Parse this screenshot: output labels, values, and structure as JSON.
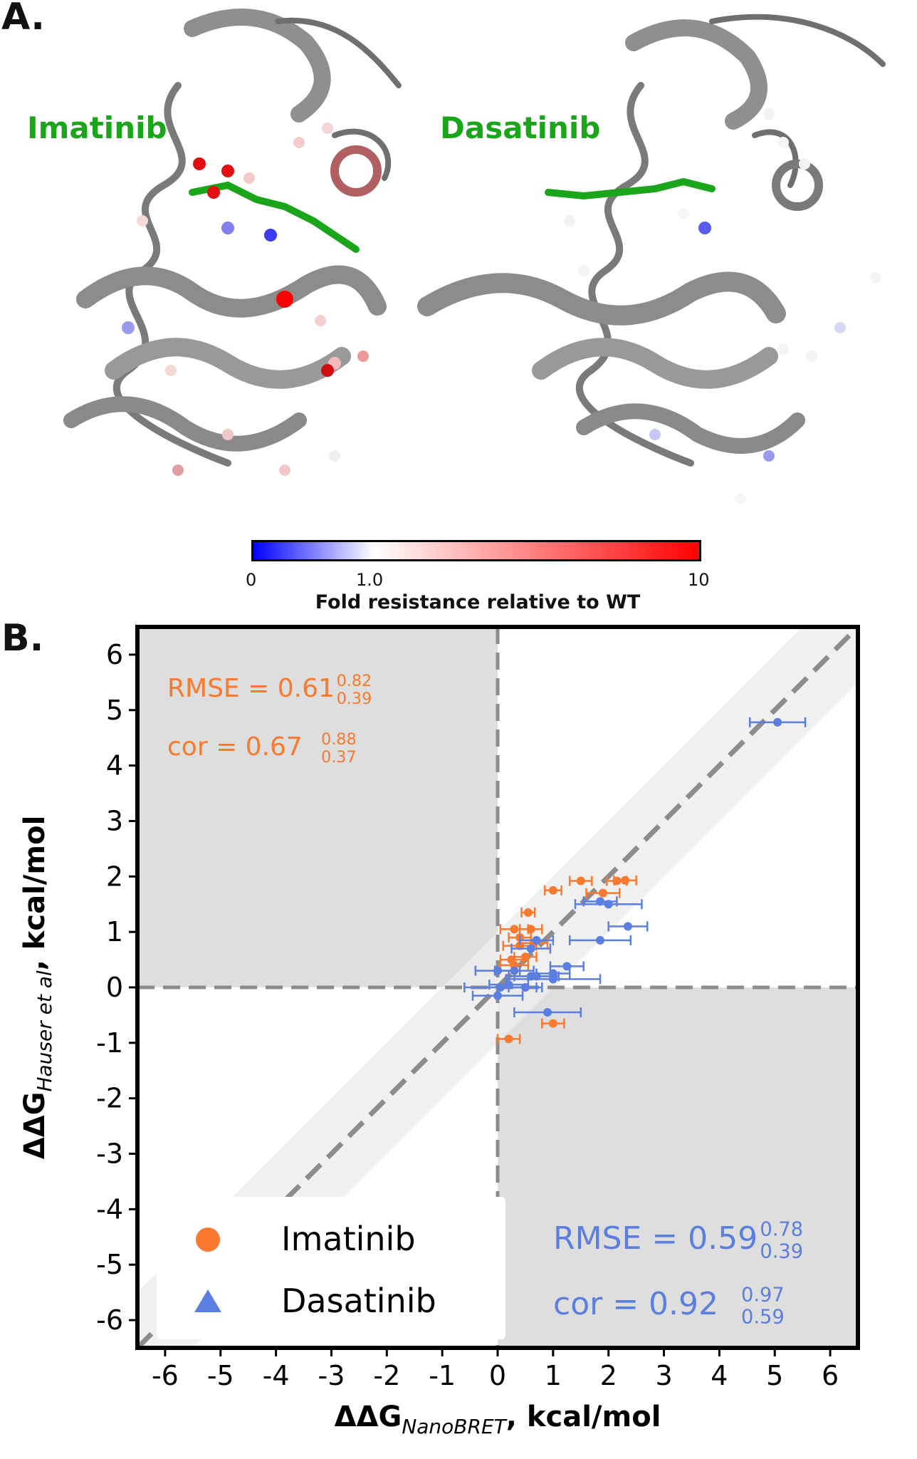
{
  "panels": {
    "a_label": "A.",
    "b_label": "B."
  },
  "structures": {
    "left_ligand": "Imatinib",
    "right_ligand": "Dasatinib"
  },
  "colorbar": {
    "ticks": [
      "0",
      "1.0",
      "10"
    ],
    "label": "Fold resistance relative to WT",
    "colors": [
      "#0000ff",
      "#ffffff",
      "#ff0000"
    ]
  },
  "chart_data": {
    "type": "scatter",
    "xlabel_main": "ΔΔG",
    "xlabel_sub": "NanoBRET",
    "xlabel_tail": ", kcal/mol",
    "ylabel_main": "ΔΔG",
    "ylabel_sub": "Hauser et al",
    "ylabel_tail": ", kcal/mol",
    "xlim": [
      -6.5,
      6.5
    ],
    "ylim": [
      -6.5,
      6.5
    ],
    "ticks": [
      -6,
      -5,
      -4,
      -3,
      -2,
      -1,
      0,
      1,
      2,
      3,
      4,
      5,
      6
    ],
    "quadrant_shading": "upper-left and lower-right quadrants shaded gray",
    "diagonal": "dashed y = x line with light ±1 band",
    "legend_position": "lower-left",
    "series": [
      {
        "name": "Imatinib",
        "color": "#f97a2e",
        "legend_marker": "circle",
        "rmse": "RMSE = 0.61",
        "rmse_hi": "0.82",
        "rmse_lo": "0.39",
        "cor": "cor = 0.67",
        "cor_hi": "0.88",
        "cor_lo": "0.37",
        "points": [
          {
            "x": 2.3,
            "y": 1.93,
            "xerr": 0.2
          },
          {
            "x": 2.15,
            "y": 1.92,
            "xerr": 0.18
          },
          {
            "x": 1.5,
            "y": 1.92,
            "xerr": 0.2
          },
          {
            "x": 1.9,
            "y": 1.7,
            "xerr": 0.3
          },
          {
            "x": 1.0,
            "y": 1.75,
            "xerr": 0.15
          },
          {
            "x": 0.55,
            "y": 1.35,
            "xerr": 0.12
          },
          {
            "x": 0.3,
            "y": 1.05,
            "xerr": 0.25
          },
          {
            "x": 0.6,
            "y": 1.05,
            "xerr": 0.2
          },
          {
            "x": 0.4,
            "y": 0.9,
            "xerr": 0.2
          },
          {
            "x": 0.65,
            "y": 0.8,
            "xerr": 0.25
          },
          {
            "x": 0.4,
            "y": 0.75,
            "xerr": 0.3
          },
          {
            "x": 0.5,
            "y": 0.55,
            "xerr": 0.2
          },
          {
            "x": 0.25,
            "y": 0.5,
            "xerr": 0.2
          },
          {
            "x": 0.3,
            "y": 0.4,
            "xerr": 0.25
          },
          {
            "x": 1.0,
            "y": -0.65,
            "xerr": 0.2
          },
          {
            "x": 0.2,
            "y": -0.93,
            "xerr": 0.2
          }
        ]
      },
      {
        "name": "Dasatinib",
        "color": "#5b7fe0",
        "legend_marker": "triangle",
        "rmse": "RMSE = 0.59",
        "rmse_hi": "0.78",
        "rmse_lo": "0.39",
        "cor": "cor = 0.92",
        "cor_hi": "0.97",
        "cor_lo": "0.59",
        "points": [
          {
            "x": 5.05,
            "y": 4.78,
            "xerr": 0.5
          },
          {
            "x": 2.0,
            "y": 1.5,
            "xerr": 0.6
          },
          {
            "x": 1.85,
            "y": 1.55,
            "xerr": 0.3
          },
          {
            "x": 2.35,
            "y": 1.1,
            "xerr": 0.35
          },
          {
            "x": 1.85,
            "y": 0.85,
            "xerr": 0.55
          },
          {
            "x": 0.7,
            "y": 0.85,
            "xerr": 0.3
          },
          {
            "x": 0.6,
            "y": 0.7,
            "xerr": 0.35
          },
          {
            "x": 1.25,
            "y": 0.38,
            "xerr": 0.3
          },
          {
            "x": 1.0,
            "y": 0.25,
            "xerr": 0.3
          },
          {
            "x": 0.7,
            "y": 0.2,
            "xerr": 0.4
          },
          {
            "x": 0.3,
            "y": 0.3,
            "xerr": 0.35
          },
          {
            "x": 0.0,
            "y": 0.3,
            "xerr": 0.4
          },
          {
            "x": 0.6,
            "y": 0.2,
            "xerr": 0.4
          },
          {
            "x": 1.0,
            "y": 0.15,
            "xerr": 0.85
          },
          {
            "x": 0.2,
            "y": 0.05,
            "xerr": 0.35
          },
          {
            "x": 0.5,
            "y": 0.0,
            "xerr": 0.3
          },
          {
            "x": 0.05,
            "y": 0.0,
            "xerr": 0.65
          },
          {
            "x": 0.0,
            "y": -0.15,
            "xerr": 0.45
          },
          {
            "x": 0.9,
            "y": -0.45,
            "xerr": 0.6
          }
        ]
      }
    ]
  }
}
